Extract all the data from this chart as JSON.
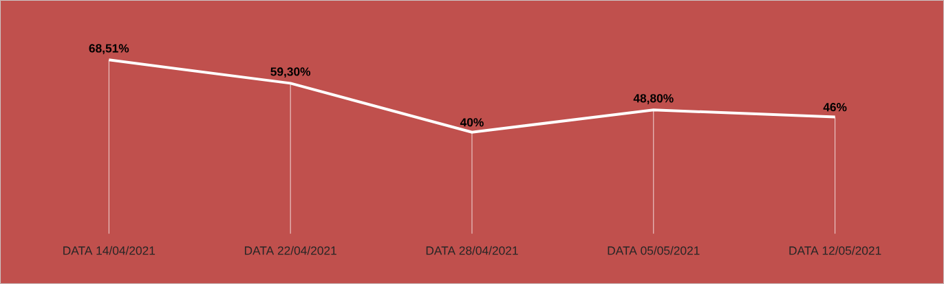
{
  "chart_data": {
    "type": "line",
    "categories": [
      "DATA 14/04/2021",
      "DATA 22/04/2021",
      "DATA 28/04/2021",
      "DATA  05/05/2021",
      "DATA 12/05/2021"
    ],
    "values": [
      68.51,
      59.3,
      40,
      48.8,
      46
    ],
    "value_labels": [
      "68,51%",
      "59,30%",
      "40%",
      "48,80%",
      "46%"
    ],
    "color": "#ffffff",
    "marker": "none",
    "grid": "x"
  }
}
